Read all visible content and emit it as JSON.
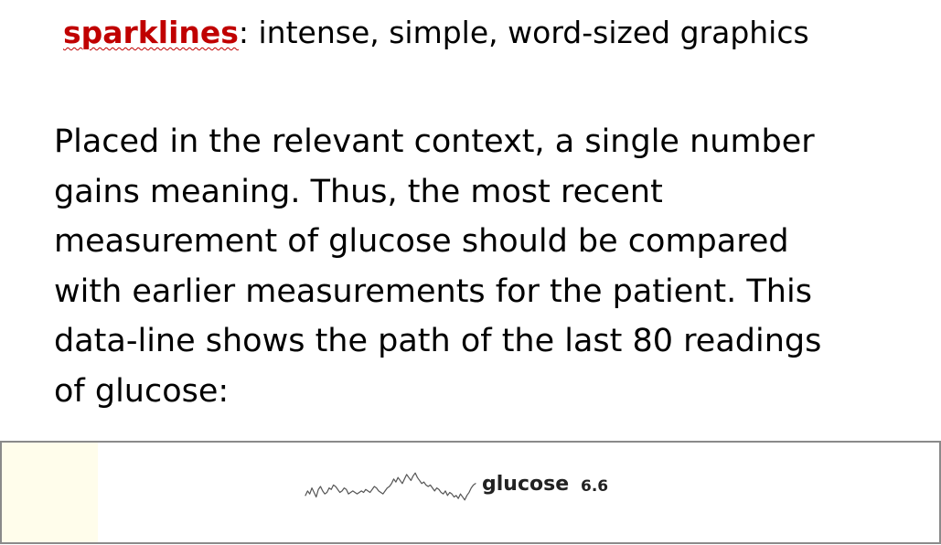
{
  "title": {
    "keyword": "sparklines",
    "rest": ": intense, simple, word-sized graphics"
  },
  "paragraph": {
    "lines": [
      "Placed in the relevant context, a single number",
      "gains meaning. Thus, the most recent",
      "measurement of glucose should be compared",
      "with earlier measurements for the patient. This",
      "data-line shows the path of the last 80 readings",
      "of glucose:"
    ]
  },
  "sparkline": {
    "label": "glucose",
    "value": "6.6",
    "line_color": "#555555"
  },
  "chart_data": {
    "type": "line",
    "title": "",
    "series": [
      {
        "values": [
          5.8,
          6.1,
          5.9,
          6.3,
          6.0,
          5.7,
          6.2,
          6.4,
          6.1,
          5.9,
          6.0,
          6.3,
          6.2,
          6.5,
          6.4,
          6.2,
          6.0,
          6.1,
          6.3,
          6.2,
          5.9,
          6.0,
          6.1,
          6.0,
          5.9,
          6.0,
          6.1,
          6.0,
          6.2,
          6.1,
          6.0,
          6.2,
          6.4,
          6.3,
          6.1,
          6.0,
          5.9,
          6.1,
          6.3,
          6.4,
          6.6,
          6.9,
          6.7,
          7.0,
          6.8,
          6.6,
          6.9,
          7.2,
          7.0,
          6.8,
          7.1,
          7.3,
          7.0,
          6.8,
          6.6,
          6.7,
          6.5,
          6.4,
          6.5,
          6.3,
          6.1,
          6.3,
          6.2,
          6.0,
          5.9,
          6.1,
          5.8,
          6.0,
          5.9,
          5.7,
          5.8,
          5.6,
          5.9,
          5.7,
          5.5,
          5.8,
          6.0,
          6.3,
          6.5,
          6.6
        ]
      }
    ],
    "ylim": [
      5.3,
      7.5
    ]
  }
}
